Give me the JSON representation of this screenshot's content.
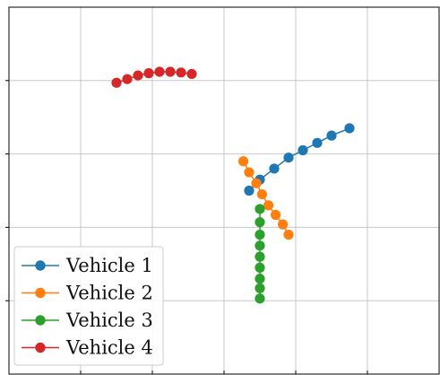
{
  "chart_data": {
    "type": "line",
    "title": "",
    "xlabel": "",
    "ylabel": "",
    "grid": true,
    "legend_position": "lower-left",
    "xlim": [
      0,
      6
    ],
    "ylim": [
      -5,
      0
    ],
    "series": [
      {
        "name": "Vehicle 1",
        "color": "#1f77b4",
        "x": [
          3.35,
          3.5,
          3.7,
          3.9,
          4.1,
          4.3,
          4.5,
          4.75
        ],
        "y": [
          -2.5,
          -2.35,
          -2.2,
          -2.05,
          -1.95,
          -1.85,
          -1.75,
          -1.65
        ]
      },
      {
        "name": "Vehicle 2",
        "color": "#ff7f0e",
        "x": [
          3.27,
          3.35,
          3.45,
          3.53,
          3.62,
          3.72,
          3.82,
          3.9
        ],
        "y": [
          -2.1,
          -2.25,
          -2.4,
          -2.55,
          -2.7,
          -2.83,
          -2.96,
          -3.1
        ]
      },
      {
        "name": "Vehicle 3",
        "color": "#2ca02c",
        "x": [
          3.5,
          3.5,
          3.5,
          3.5,
          3.5,
          3.5,
          3.5,
          3.5,
          3.5
        ],
        "y": [
          -2.75,
          -2.93,
          -3.1,
          -3.25,
          -3.4,
          -3.55,
          -3.7,
          -3.83,
          -3.97
        ]
      },
      {
        "name": "Vehicle 4",
        "color": "#d62728",
        "x": [
          1.5,
          1.65,
          1.8,
          1.95,
          2.1,
          2.25,
          2.4,
          2.55
        ],
        "y": [
          -1.03,
          -0.98,
          -0.93,
          -0.9,
          -0.88,
          -0.88,
          -0.89,
          -0.91
        ]
      }
    ]
  }
}
